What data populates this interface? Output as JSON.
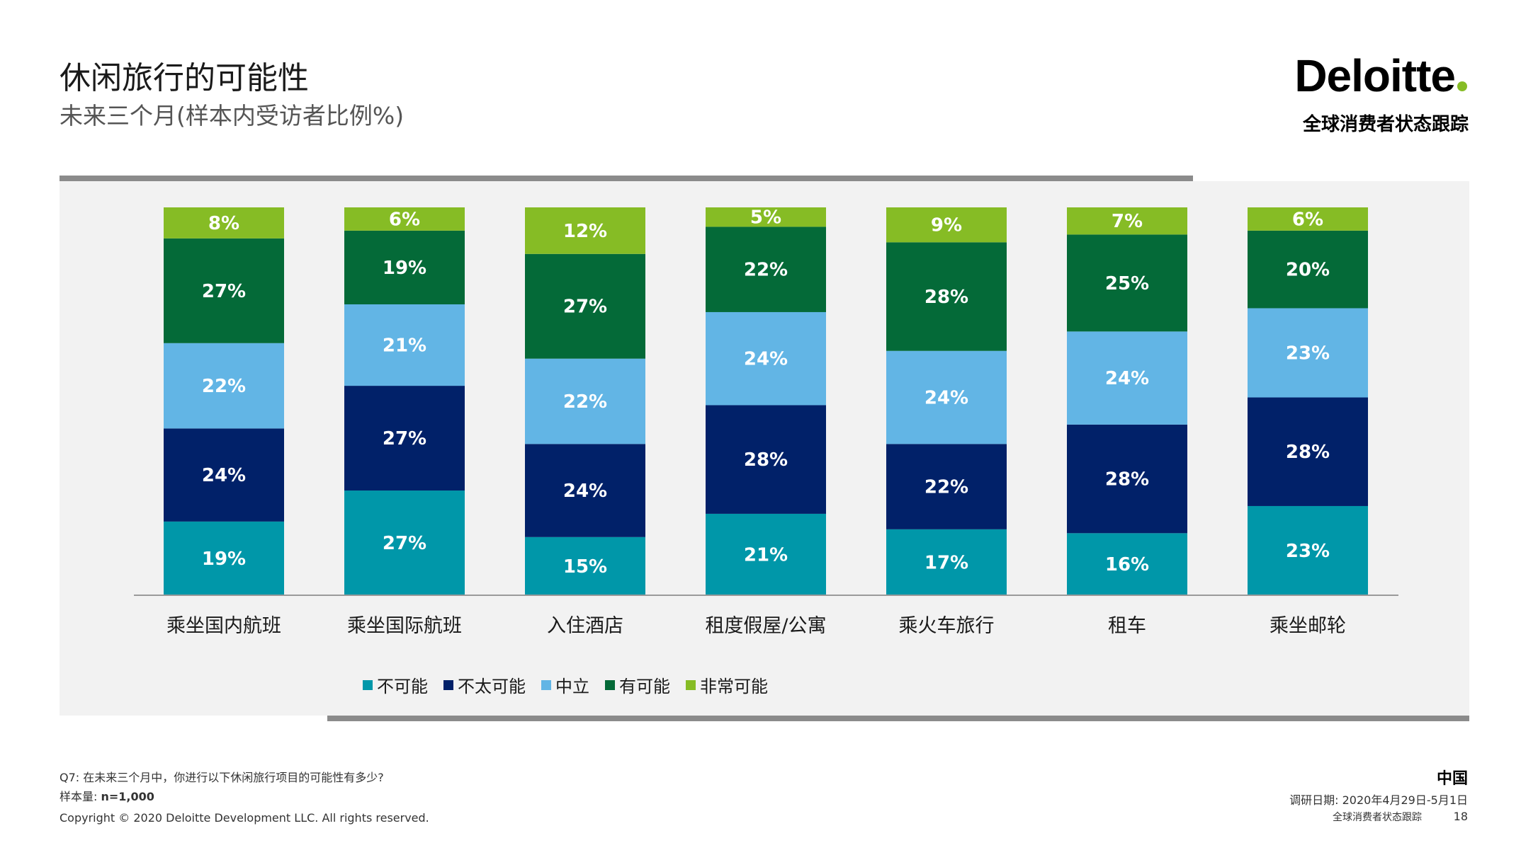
{
  "title": "休闲旅行的可能性",
  "subtitle": "未来三个月(样本内受访者比例%)",
  "brand": {
    "logo_text": "Deloitte",
    "tracker_label": "全球消费者状态跟踪",
    "dot_color": "#86bc25"
  },
  "chart_data": {
    "type": "bar",
    "stacked": true,
    "categories": [
      "乘坐国内航班",
      "乘坐国际航班",
      "入住酒店",
      "租度假屋/公寓",
      "乘火车旅行",
      "租车",
      "乘坐邮轮"
    ],
    "series": [
      {
        "name": "不可能",
        "color": "#0097a9",
        "values": [
          19,
          27,
          15,
          21,
          17,
          16,
          23
        ]
      },
      {
        "name": "不太可能",
        "color": "#012169",
        "values": [
          24,
          27,
          24,
          28,
          22,
          28,
          28
        ]
      },
      {
        "name": "中立",
        "color": "#62b5e5",
        "values": [
          22,
          21,
          22,
          24,
          24,
          24,
          23
        ]
      },
      {
        "name": "有可能",
        "color": "#046a38",
        "values": [
          27,
          19,
          27,
          22,
          28,
          25,
          20
        ]
      },
      {
        "name": "非常可能",
        "color": "#86bc25",
        "values": [
          8,
          6,
          12,
          5,
          9,
          7,
          6
        ]
      }
    ],
    "ylim": [
      0,
      100
    ],
    "value_suffix": "%",
    "legend_position": "bottom",
    "grid": false
  },
  "footer": {
    "question": "Q7: 在未来三个月中，你进行以下休闲旅行项目的可能性有多少?",
    "sample_label": "样本量:",
    "sample_value": "n=1,000",
    "copyright": "Copyright © 2020 Deloitte Development LLC. All rights reserved.",
    "region": "中国",
    "survey_date": "调研日期: 2020年4月29日-5月1日",
    "tracker": "全球消费者状态跟踪",
    "page": "18"
  }
}
